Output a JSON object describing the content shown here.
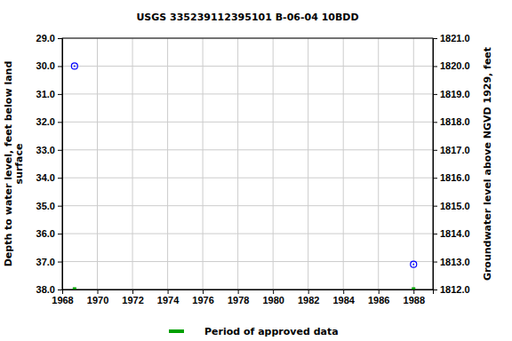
{
  "chart_data": {
    "type": "scatter",
    "title": "USGS 335239112395101 B-06-04 10BDD",
    "ylabel": [
      "Depth to water level, feet below land",
      "surface"
    ],
    "y2label": "Groundwater level above NGVD 1929, feet",
    "xlim": [
      1968,
      1989.1
    ],
    "xticks": [
      1968,
      1970,
      1972,
      1974,
      1976,
      1978,
      1980,
      1982,
      1984,
      1986,
      1988
    ],
    "ylim": [
      38,
      29
    ],
    "yticks": [
      {
        "value": 29,
        "label": "29.0"
      },
      {
        "value": 30,
        "label": "30.0"
      },
      {
        "value": 31,
        "label": "31.0"
      },
      {
        "value": 32,
        "label": "32.0"
      },
      {
        "value": 33,
        "label": "33.0"
      },
      {
        "value": 34,
        "label": "34.0"
      },
      {
        "value": 35,
        "label": "35.0"
      },
      {
        "value": 36,
        "label": "36.0"
      },
      {
        "value": 37,
        "label": "37.0"
      },
      {
        "value": 38,
        "label": "38.0"
      }
    ],
    "y2lim": [
      1812,
      1821
    ],
    "y2ticks": [
      {
        "value": 1821,
        "label": "1821.0"
      },
      {
        "value": 1820,
        "label": "1820.0"
      },
      {
        "value": 1819,
        "label": "1819.0"
      },
      {
        "value": 1818,
        "label": "1818.0"
      },
      {
        "value": 1817,
        "label": "1817.0"
      },
      {
        "value": 1816,
        "label": "1816.0"
      },
      {
        "value": 1815,
        "label": "1815.0"
      },
      {
        "value": 1814,
        "label": "1814.0"
      },
      {
        "value": 1813,
        "label": "1813.0"
      },
      {
        "value": 1812,
        "label": "1812.0"
      }
    ],
    "grid": true,
    "series": [
      {
        "color": "#0000ff",
        "marker": "circle",
        "x": [
          1968.7,
          1988.0
        ],
        "values": [
          30.0,
          37.1
        ]
      },
      {
        "name": "Period of approved data",
        "color": "#00a000",
        "marker": "square",
        "x": [
          1968.7,
          1988.0
        ],
        "values": [
          38,
          38
        ]
      }
    ]
  }
}
